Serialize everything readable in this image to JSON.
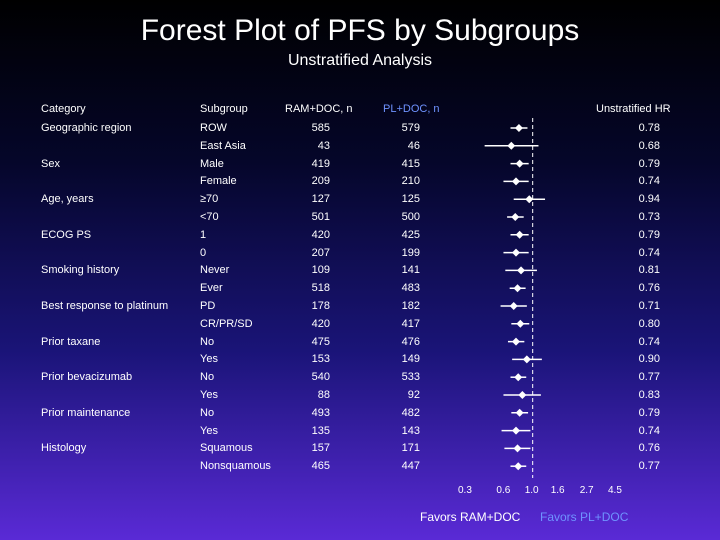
{
  "title": "Forest Plot of PFS by Subgroups",
  "subtitle": "Unstratified Analysis",
  "headers": {
    "category": "Category",
    "subgroup": "Subgroup",
    "ram": "RAM+DOC, n",
    "pl": "PL+DOC, n",
    "hr": "Unstratified HR"
  },
  "categories": [
    {
      "label": "Geographic region",
      "row": 0
    },
    {
      "label": "Sex",
      "row": 2
    },
    {
      "label": "Age, years",
      "row": 4
    },
    {
      "label": "ECOG PS",
      "row": 6
    },
    {
      "label": "Smoking history",
      "row": 8
    },
    {
      "label": "Best response to platinum",
      "row": 10
    },
    {
      "label": "Prior taxane",
      "row": 12
    },
    {
      "label": "Prior bevacizumab",
      "row": 14
    },
    {
      "label": "Prior maintenance",
      "row": 16
    },
    {
      "label": "Histology",
      "row": 18
    }
  ],
  "footer": {
    "favors_left": "Favors RAM+DOC",
    "favors_right": "Favors PL+DOC",
    "left_color": "#ffffff",
    "right_color": "#6f93ff"
  },
  "chart_data": {
    "type": "forest",
    "x_scale": "log",
    "x_ticks": [
      0.3,
      0.6,
      1.0,
      1.6,
      2.7,
      4.5
    ],
    "x_tick_labels": [
      "0.3",
      "0.6",
      "1.0",
      "1.6",
      "2.7",
      "4.5"
    ],
    "reference_line": 1.0,
    "rows": [
      {
        "subgroup": "ROW",
        "ram_n": "585",
        "pl_n": "579",
        "hr": 0.78,
        "hr_label": "0.78",
        "ci": [
          0.67,
          0.91
        ]
      },
      {
        "subgroup": "East Asia",
        "ram_n": "43",
        "pl_n": "46",
        "hr": 0.68,
        "hr_label": "0.68",
        "ci": [
          0.42,
          1.11
        ]
      },
      {
        "subgroup": "Male",
        "ram_n": "419",
        "pl_n": "415",
        "hr": 0.79,
        "hr_label": "0.79",
        "ci": [
          0.67,
          0.93
        ]
      },
      {
        "subgroup": "Female",
        "ram_n": "209",
        "pl_n": "210",
        "hr": 0.74,
        "hr_label": "0.74",
        "ci": [
          0.59,
          0.93
        ]
      },
      {
        "subgroup": "≥70",
        "ram_n": "127",
        "pl_n": "125",
        "hr": 0.94,
        "hr_label": "0.94",
        "ci": [
          0.71,
          1.25
        ]
      },
      {
        "subgroup": "<70",
        "ram_n": "501",
        "pl_n": "500",
        "hr": 0.73,
        "hr_label": "0.73",
        "ci": [
          0.63,
          0.85
        ]
      },
      {
        "subgroup": "1",
        "ram_n": "420",
        "pl_n": "425",
        "hr": 0.79,
        "hr_label": "0.79",
        "ci": [
          0.67,
          0.93
        ]
      },
      {
        "subgroup": "0",
        "ram_n": "207",
        "pl_n": "199",
        "hr": 0.74,
        "hr_label": "0.74",
        "ci": [
          0.59,
          0.93
        ]
      },
      {
        "subgroup": "Never",
        "ram_n": "109",
        "pl_n": "141",
        "hr": 0.81,
        "hr_label": "0.81",
        "ci": [
          0.61,
          1.08
        ]
      },
      {
        "subgroup": "Ever",
        "ram_n": "518",
        "pl_n": "483",
        "hr": 0.76,
        "hr_label": "0.76",
        "ci": [
          0.66,
          0.88
        ]
      },
      {
        "subgroup": "PD",
        "ram_n": "178",
        "pl_n": "182",
        "hr": 0.71,
        "hr_label": "0.71",
        "ci": [
          0.56,
          0.9
        ]
      },
      {
        "subgroup": "CR/PR/SD",
        "ram_n": "420",
        "pl_n": "417",
        "hr": 0.8,
        "hr_label": "0.80",
        "ci": [
          0.68,
          0.94
        ]
      },
      {
        "subgroup": "No",
        "ram_n": "475",
        "pl_n": "476",
        "hr": 0.74,
        "hr_label": "0.74",
        "ci": [
          0.64,
          0.86
        ]
      },
      {
        "subgroup": "Yes",
        "ram_n": "153",
        "pl_n": "149",
        "hr": 0.9,
        "hr_label": "0.90",
        "ci": [
          0.69,
          1.18
        ]
      },
      {
        "subgroup": "No",
        "ram_n": "540",
        "pl_n": "533",
        "hr": 0.77,
        "hr_label": "0.77",
        "ci": [
          0.67,
          0.89
        ]
      },
      {
        "subgroup": "Yes",
        "ram_n": "88",
        "pl_n": "92",
        "hr": 0.83,
        "hr_label": "0.83",
        "ci": [
          0.59,
          1.16
        ]
      },
      {
        "subgroup": "No",
        "ram_n": "493",
        "pl_n": "482",
        "hr": 0.79,
        "hr_label": "0.79",
        "ci": [
          0.68,
          0.92
        ]
      },
      {
        "subgroup": "Yes",
        "ram_n": "135",
        "pl_n": "143",
        "hr": 0.74,
        "hr_label": "0.74",
        "ci": [
          0.57,
          0.96
        ]
      },
      {
        "subgroup": "Squamous",
        "ram_n": "157",
        "pl_n": "171",
        "hr": 0.76,
        "hr_label": "0.76",
        "ci": [
          0.6,
          0.96
        ]
      },
      {
        "subgroup": "Nonsquamous",
        "ram_n": "465",
        "pl_n": "447",
        "hr": 0.77,
        "hr_label": "0.77",
        "ci": [
          0.67,
          0.89
        ]
      }
    ]
  }
}
